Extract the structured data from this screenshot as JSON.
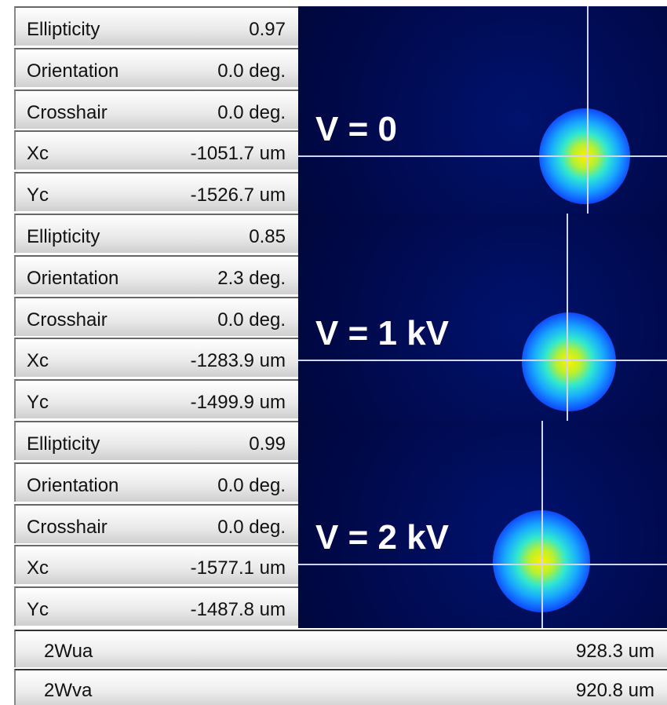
{
  "panels": [
    {
      "voltage": "V = 0",
      "rows": [
        {
          "label": "Ellipticity",
          "value": "0.97"
        },
        {
          "label": "Orientation",
          "value": "0.0 deg."
        },
        {
          "label": "Crosshair",
          "value": "0.0 deg."
        },
        {
          "label": "Xc",
          "value": "-1051.7 um"
        },
        {
          "label": "Yc",
          "value": "-1526.7 um"
        }
      ]
    },
    {
      "voltage": "V = 1 kV",
      "rows": [
        {
          "label": "Ellipticity",
          "value": "0.85"
        },
        {
          "label": "Orientation",
          "value": "2.3 deg."
        },
        {
          "label": "Crosshair",
          "value": "0.0 deg."
        },
        {
          "label": "Xc",
          "value": "-1283.9 um"
        },
        {
          "label": "Yc",
          "value": "-1499.9 um"
        }
      ]
    },
    {
      "voltage": "V = 2 kV",
      "rows": [
        {
          "label": "Ellipticity",
          "value": "0.99"
        },
        {
          "label": "Orientation",
          "value": "0.0 deg."
        },
        {
          "label": "Crosshair",
          "value": "0.0 deg."
        },
        {
          "label": "Xc",
          "value": "-1577.1 um"
        },
        {
          "label": "Yc",
          "value": "-1487.8 um"
        }
      ]
    }
  ],
  "footer": [
    {
      "label": "2Wua",
      "value": "928.3 um"
    },
    {
      "label": "2Wva",
      "value": "920.8 um"
    }
  ]
}
